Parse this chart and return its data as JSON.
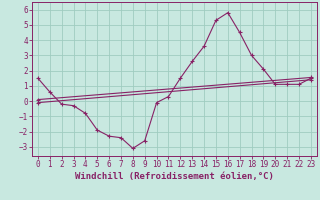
{
  "title": "",
  "xlabel": "Windchill (Refroidissement éolien,°C)",
  "ylabel": "",
  "xlim": [
    -0.5,
    23.5
  ],
  "ylim": [
    -3.6,
    6.5
  ],
  "yticks": [
    -3,
    -2,
    -1,
    0,
    1,
    2,
    3,
    4,
    5,
    6
  ],
  "xticks": [
    0,
    1,
    2,
    3,
    4,
    5,
    6,
    7,
    8,
    9,
    10,
    11,
    12,
    13,
    14,
    15,
    16,
    17,
    18,
    19,
    20,
    21,
    22,
    23
  ],
  "bg_color": "#c8e8e0",
  "grid_color": "#a0ccc0",
  "line_color": "#882266",
  "main_data_x": [
    0,
    1,
    2,
    3,
    4,
    5,
    6,
    7,
    8,
    9,
    10,
    11,
    12,
    13,
    14,
    15,
    16,
    17,
    18,
    19,
    20,
    21,
    22,
    23
  ],
  "main_data_y": [
    1.5,
    0.6,
    -0.2,
    -0.3,
    -0.8,
    -1.9,
    -2.3,
    -2.4,
    -3.1,
    -2.6,
    -0.1,
    0.3,
    1.5,
    2.6,
    3.6,
    5.3,
    5.8,
    4.5,
    3.0,
    2.1,
    1.1,
    1.1,
    1.1,
    1.5
  ],
  "trend1_x": [
    0,
    23
  ],
  "trend1_y": [
    -0.1,
    1.4
  ],
  "trend2_x": [
    0,
    23
  ],
  "trend2_y": [
    0.1,
    1.55
  ],
  "font_size_label": 6.5,
  "font_size_tick": 5.5
}
